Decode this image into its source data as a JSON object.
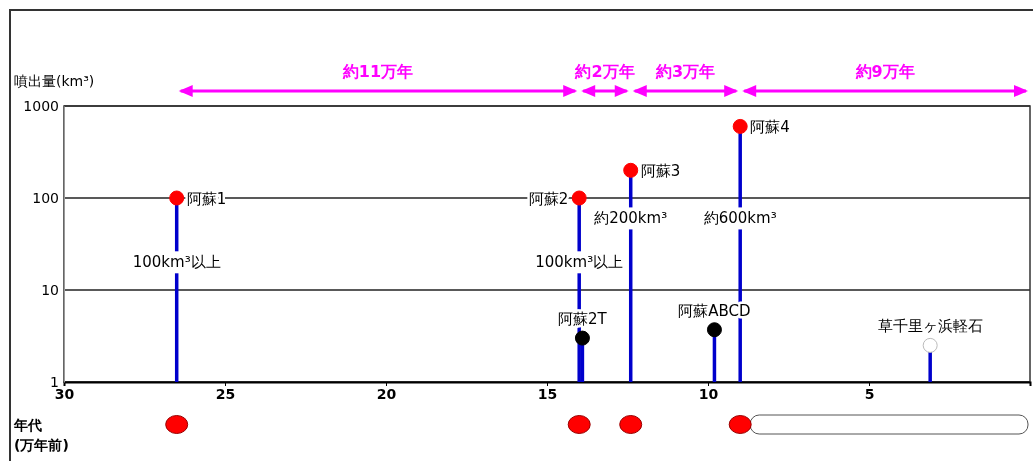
{
  "chart_data": {
    "type": "lollipop",
    "ylabel": "噴出量(km³)",
    "xlabel": "年代\n(万年前)",
    "log": "y",
    "grid": "y",
    "marker": "circle",
    "xlim": [
      30,
      0
    ],
    "xticks": [
      30,
      25,
      20,
      15,
      10,
      5
    ],
    "ylim": [
      1,
      1000
    ],
    "yticks": [
      1,
      10,
      100,
      1000
    ],
    "series": [
      {
        "color": "#ff0000",
        "x": [
          26.5,
          14,
          12.4,
          9
        ],
        "values": [
          100,
          100,
          200,
          600
        ]
      },
      {
        "color": "#000000",
        "x": [
          13.9,
          9.8
        ],
        "values": [
          3,
          3.7
        ]
      },
      {
        "color": "#ffffff",
        "x": [
          3.1
        ],
        "values": [
          2.5
        ]
      }
    ],
    "annotations": [
      {
        "text": "阿蘇1",
        "x": 26.5,
        "y": 100
      },
      {
        "text": "阿蘇2",
        "x": 14,
        "y": 100
      },
      {
        "text": "阿蘇3",
        "x": 12.4,
        "y": 200
      },
      {
        "text": "阿蘇4",
        "x": 9,
        "y": 600
      },
      {
        "text": "阿蘇2T",
        "x": 13.9,
        "y": 3
      },
      {
        "text": "阿蘇ABCD",
        "x": 9.8,
        "y": 3.7
      },
      {
        "text": "草千里ヶ浜軽石",
        "x": 3.1,
        "y": 2.5
      },
      "100km³以上",
      "100km³以上",
      "約200km³",
      "約600km³",
      "約11万年",
      "約2万年",
      "約3万年",
      "約9万年"
    ]
  }
}
